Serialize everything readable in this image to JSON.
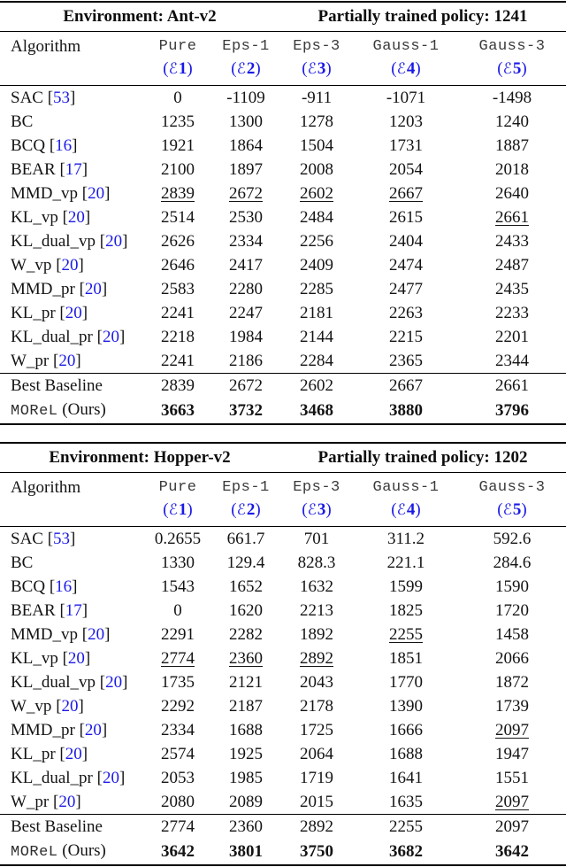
{
  "colors": {
    "accent_blue": "#1a1ae6",
    "text": "#141414",
    "rule": "#000000",
    "background": "#ffffff"
  },
  "columns": {
    "algorithm_label": "Algorithm",
    "e_symbol": "ℰ",
    "paren_open": "(",
    "paren_close": ")",
    "cite_open": "[",
    "cite_close": "]",
    "noise_headers": [
      {
        "label": "Pure",
        "e_num": "1"
      },
      {
        "label": "Eps-1",
        "e_num": "2"
      },
      {
        "label": "Eps-3",
        "e_num": "3"
      },
      {
        "label": "Gauss-1",
        "e_num": "4"
      },
      {
        "label": "Gauss-3",
        "e_num": "5"
      }
    ]
  },
  "tables": [
    {
      "environment_label": "Environment: Ant-v2",
      "policy_label": "Partially trained policy: 1241",
      "rows": [
        {
          "name": "SAC",
          "cite": "53",
          "values": [
            "0",
            "-1109",
            "-911",
            "-1071",
            "-1498"
          ],
          "underline": []
        },
        {
          "name": "BC",
          "cite": null,
          "values": [
            "1235",
            "1300",
            "1278",
            "1203",
            "1240"
          ],
          "underline": []
        },
        {
          "name": "BCQ",
          "cite": "16",
          "values": [
            "1921",
            "1864",
            "1504",
            "1731",
            "1887"
          ],
          "underline": []
        },
        {
          "name": "BEAR",
          "cite": "17",
          "values": [
            "2100",
            "1897",
            "2008",
            "2054",
            "2018"
          ],
          "underline": []
        },
        {
          "name": "MMD_vp",
          "cite": "20",
          "values": [
            "2839",
            "2672",
            "2602",
            "2667",
            "2640"
          ],
          "underline": [
            0,
            1,
            2,
            3
          ]
        },
        {
          "name": "KL_vp",
          "cite": "20",
          "values": [
            "2514",
            "2530",
            "2484",
            "2615",
            "2661"
          ],
          "underline": [
            4
          ]
        },
        {
          "name": "KL_dual_vp",
          "cite": "20",
          "values": [
            "2626",
            "2334",
            "2256",
            "2404",
            "2433"
          ],
          "underline": []
        },
        {
          "name": "W_vp",
          "cite": "20",
          "values": [
            "2646",
            "2417",
            "2409",
            "2474",
            "2487"
          ],
          "underline": []
        },
        {
          "name": "MMD_pr",
          "cite": "20",
          "values": [
            "2583",
            "2280",
            "2285",
            "2477",
            "2435"
          ],
          "underline": []
        },
        {
          "name": "KL_pr",
          "cite": "20",
          "values": [
            "2241",
            "2247",
            "2181",
            "2263",
            "2233"
          ],
          "underline": []
        },
        {
          "name": "KL_dual_pr",
          "cite": "20",
          "values": [
            "2218",
            "1984",
            "2144",
            "2215",
            "2201"
          ],
          "underline": []
        },
        {
          "name": "W_pr",
          "cite": "20",
          "values": [
            "2241",
            "2186",
            "2284",
            "2365",
            "2344"
          ],
          "underline": []
        }
      ],
      "best_baseline": {
        "label": "Best Baseline",
        "values": [
          "2839",
          "2672",
          "2602",
          "2667",
          "2661"
        ]
      },
      "morel": {
        "mono_name": "MOReL",
        "suffix": " (Ours)",
        "values": [
          "3663",
          "3732",
          "3468",
          "3880",
          "3796"
        ]
      }
    },
    {
      "environment_label": "Environment: Hopper-v2",
      "policy_label": "Partially trained policy: 1202",
      "rows": [
        {
          "name": "SAC",
          "cite": "53",
          "values": [
            "0.2655",
            "661.7",
            "701",
            "311.2",
            "592.6"
          ],
          "underline": []
        },
        {
          "name": "BC",
          "cite": null,
          "values": [
            "1330",
            "129.4",
            "828.3",
            "221.1",
            "284.6"
          ],
          "underline": []
        },
        {
          "name": "BCQ",
          "cite": "16",
          "values": [
            "1543",
            "1652",
            "1632",
            "1599",
            "1590"
          ],
          "underline": []
        },
        {
          "name": "BEAR",
          "cite": "17",
          "values": [
            "0",
            "1620",
            "2213",
            "1825",
            "1720"
          ],
          "underline": []
        },
        {
          "name": "MMD_vp",
          "cite": "20",
          "values": [
            "2291",
            "2282",
            "1892",
            "2255",
            "1458"
          ],
          "underline": [
            3
          ]
        },
        {
          "name": "KL_vp",
          "cite": "20",
          "values": [
            "2774",
            "2360",
            "2892",
            "1851",
            "2066"
          ],
          "underline": [
            0,
            1,
            2
          ]
        },
        {
          "name": "KL_dual_vp",
          "cite": "20",
          "values": [
            "1735",
            "2121",
            "2043",
            "1770",
            "1872"
          ],
          "underline": []
        },
        {
          "name": "W_vp",
          "cite": "20",
          "values": [
            "2292",
            "2187",
            "2178",
            "1390",
            "1739"
          ],
          "underline": []
        },
        {
          "name": "MMD_pr",
          "cite": "20",
          "values": [
            "2334",
            "1688",
            "1725",
            "1666",
            "2097"
          ],
          "underline": [
            4
          ]
        },
        {
          "name": "KL_pr",
          "cite": "20",
          "values": [
            "2574",
            "1925",
            "2064",
            "1688",
            "1947"
          ],
          "underline": []
        },
        {
          "name": "KL_dual_pr",
          "cite": "20",
          "values": [
            "2053",
            "1985",
            "1719",
            "1641",
            "1551"
          ],
          "underline": []
        },
        {
          "name": "W_pr",
          "cite": "20",
          "values": [
            "2080",
            "2089",
            "2015",
            "1635",
            "2097"
          ],
          "underline": [
            4
          ]
        }
      ],
      "best_baseline": {
        "label": "Best Baseline",
        "values": [
          "2774",
          "2360",
          "2892",
          "2255",
          "2097"
        ]
      },
      "morel": {
        "mono_name": "MOReL",
        "suffix": " (Ours)",
        "values": [
          "3642",
          "3801",
          "3750",
          "3682",
          "3642"
        ]
      }
    }
  ]
}
